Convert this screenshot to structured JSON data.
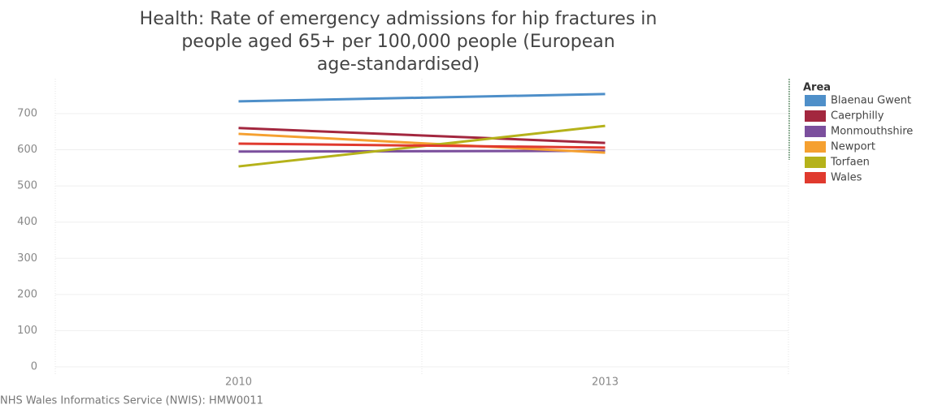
{
  "chart_data": {
    "type": "line",
    "title": [
      "Health: Rate of emergency admissions for hip fractures in",
      "people aged 65+ per 100,000 people (European",
      "age-standardised)"
    ],
    "categories": [
      "2010",
      "2013"
    ],
    "series": [
      {
        "name": "Blaenau Gwent",
        "color": "#4e8fc9",
        "values": [
          734,
          754
        ]
      },
      {
        "name": "Caerphilly",
        "color": "#a3273f",
        "values": [
          660,
          619
        ]
      },
      {
        "name": "Monmouthshire",
        "color": "#7b4f9d",
        "values": [
          595,
          597
        ]
      },
      {
        "name": "Newport",
        "color": "#f5a030",
        "values": [
          644,
          592
        ]
      },
      {
        "name": "Torfaen",
        "color": "#b5b21a",
        "values": [
          554,
          666
        ]
      },
      {
        "name": "Wales",
        "color": "#e03a2e",
        "values": [
          617,
          606
        ]
      }
    ],
    "ylim": [
      0,
      800
    ],
    "yticks": [
      0,
      100,
      200,
      300,
      400,
      500,
      600,
      700
    ],
    "grid": true,
    "legend_title": "Area",
    "legend": "right",
    "source": "NHS Wales Informatics Service (NWIS): HMW0011"
  }
}
